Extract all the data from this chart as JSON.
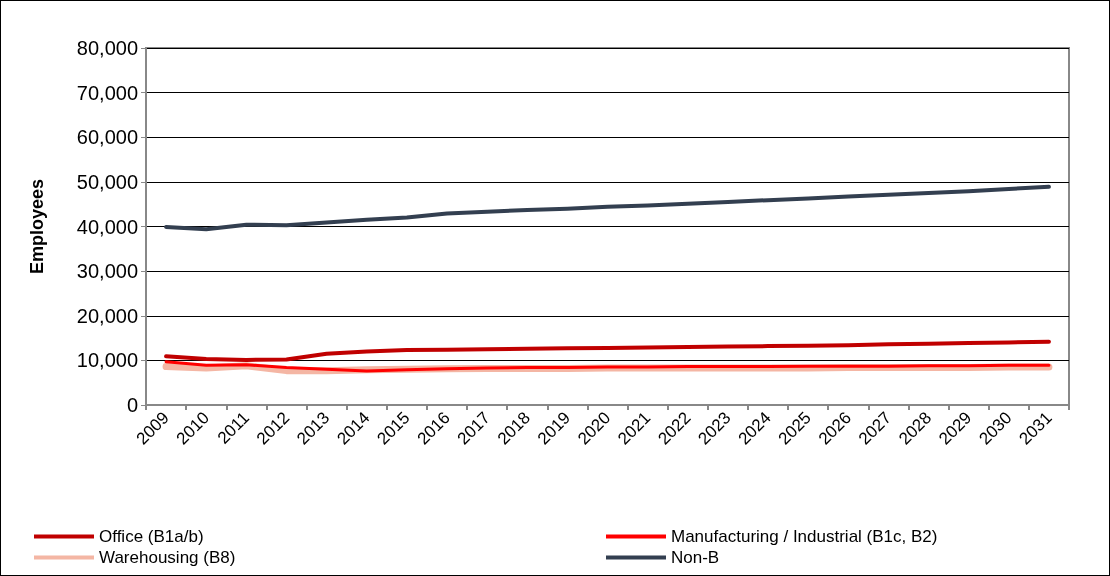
{
  "chart_data": {
    "type": "line",
    "ylabel": "Employees",
    "categories": [
      "2009",
      "2010",
      "2011",
      "2012",
      "2013",
      "2014",
      "2015",
      "2016",
      "2017",
      "2018",
      "2019",
      "2020",
      "2021",
      "2022",
      "2023",
      "2024",
      "2025",
      "2026",
      "2027",
      "2028",
      "2029",
      "2030",
      "2031"
    ],
    "series": [
      {
        "name": "Office (B1a/b)",
        "color": "#c00000",
        "values": [
          10900,
          10300,
          10100,
          10200,
          11500,
          12000,
          12300,
          12400,
          12500,
          12600,
          12700,
          12800,
          12900,
          13000,
          13100,
          13200,
          13300,
          13400,
          13600,
          13700,
          13900,
          14000,
          14200
        ]
      },
      {
        "name": "Manufacturing / Industrial (B1c, B2)",
        "color": "#ff0000",
        "values": [
          9700,
          8900,
          9000,
          8400,
          8000,
          7600,
          7900,
          8100,
          8300,
          8400,
          8400,
          8500,
          8500,
          8600,
          8600,
          8600,
          8700,
          8700,
          8700,
          8800,
          8800,
          8900,
          8900
        ]
      },
      {
        "name": "Warehousing (B8)",
        "color": "#f4b6a4",
        "values": [
          8600,
          8300,
          8800,
          7700,
          7700,
          7900,
          8000,
          8100,
          8200,
          8200,
          8200,
          8300,
          8300,
          8300,
          8300,
          8300,
          8300,
          8400,
          8400,
          8400,
          8400,
          8500,
          8500
        ]
      },
      {
        "name": "Non-B",
        "color": "#333f50",
        "values": [
          39900,
          39400,
          40400,
          40300,
          40900,
          41500,
          42000,
          42900,
          43300,
          43700,
          44000,
          44400,
          44700,
          45100,
          45500,
          45900,
          46300,
          46700,
          47100,
          47500,
          47900,
          48400,
          48900
        ]
      }
    ],
    "ylim": [
      0,
      80000
    ],
    "yticks": [
      0,
      {
        "value": 10000,
        "label": "10,000"
      },
      {
        "value": 20000,
        "label": "20,000"
      },
      {
        "value": 30000,
        "label": "30,000"
      },
      {
        "value": 40000,
        "label": "40,000"
      },
      {
        "value": 50000,
        "label": "50,000"
      },
      {
        "value": 60000,
        "label": "60,000"
      },
      {
        "value": 70000,
        "label": "70,000"
      },
      {
        "value": 80000,
        "label": "80,000"
      }
    ],
    "grid": "y",
    "legend": "bottom",
    "marker": "none",
    "line_style": "solid"
  }
}
